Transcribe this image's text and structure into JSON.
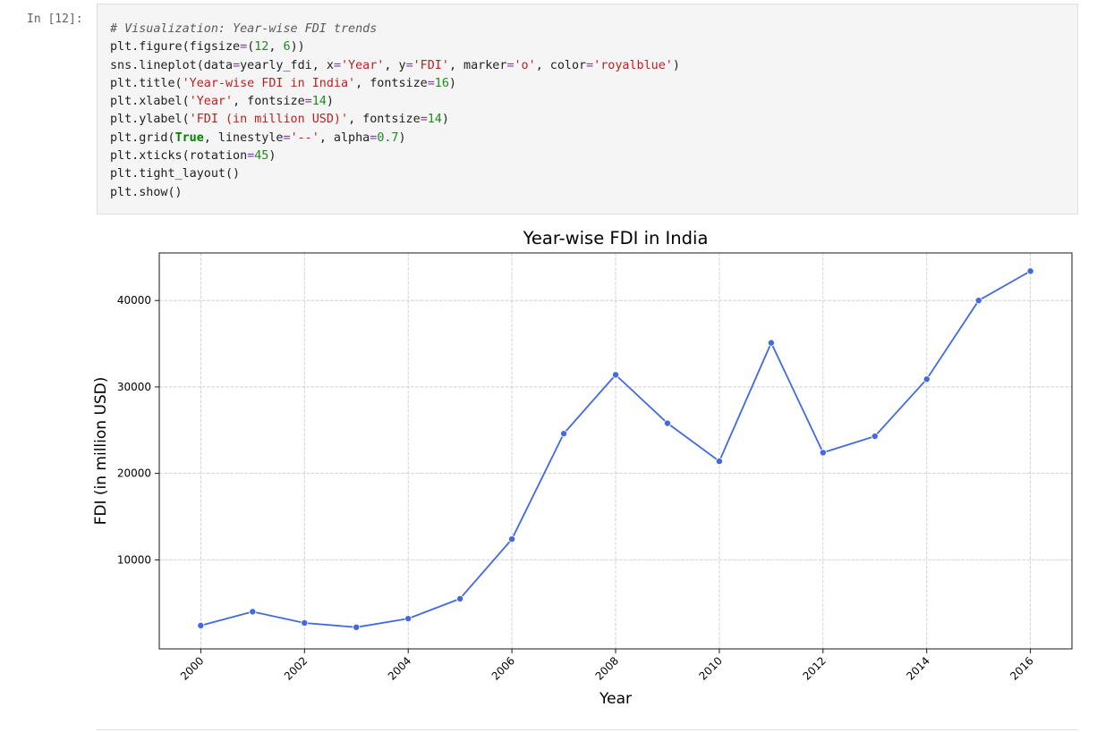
{
  "cell": {
    "prompt": "In [12]:",
    "code_lines": [
      [
        {
          "t": "# Visualization: Year-wise FDI trends",
          "c": "cm"
        }
      ],
      [
        {
          "t": "plt.figure(figsize"
        },
        {
          "t": "=",
          "c": "op"
        },
        {
          "t": "("
        },
        {
          "t": "12",
          "c": "nu"
        },
        {
          "t": ", "
        },
        {
          "t": "6",
          "c": "nu"
        },
        {
          "t": "))"
        }
      ],
      [
        {
          "t": "sns.lineplot(data"
        },
        {
          "t": "=",
          "c": "op"
        },
        {
          "t": "yearly_fdi, x"
        },
        {
          "t": "=",
          "c": "op"
        },
        {
          "t": "'Year'",
          "c": "st"
        },
        {
          "t": ", y"
        },
        {
          "t": "=",
          "c": "op"
        },
        {
          "t": "'FDI'",
          "c": "st"
        },
        {
          "t": ", marker"
        },
        {
          "t": "=",
          "c": "op"
        },
        {
          "t": "'o'",
          "c": "st"
        },
        {
          "t": ", color"
        },
        {
          "t": "=",
          "c": "op"
        },
        {
          "t": "'royalblue'",
          "c": "st"
        },
        {
          "t": ")"
        }
      ],
      [
        {
          "t": "plt.title("
        },
        {
          "t": "'Year-wise FDI in India'",
          "c": "st"
        },
        {
          "t": ", fontsize"
        },
        {
          "t": "=",
          "c": "op"
        },
        {
          "t": "16",
          "c": "nu"
        },
        {
          "t": ")"
        }
      ],
      [
        {
          "t": "plt.xlabel("
        },
        {
          "t": "'Year'",
          "c": "st"
        },
        {
          "t": ", fontsize"
        },
        {
          "t": "=",
          "c": "op"
        },
        {
          "t": "14",
          "c": "nu"
        },
        {
          "t": ")"
        }
      ],
      [
        {
          "t": "plt.ylabel("
        },
        {
          "t": "'FDI (in million USD)'",
          "c": "st"
        },
        {
          "t": ", fontsize"
        },
        {
          "t": "=",
          "c": "op"
        },
        {
          "t": "14",
          "c": "nu"
        },
        {
          "t": ")"
        }
      ],
      [
        {
          "t": "plt.grid("
        },
        {
          "t": "True",
          "c": "kw"
        },
        {
          "t": ", linestyle"
        },
        {
          "t": "=",
          "c": "op"
        },
        {
          "t": "'--'",
          "c": "st"
        },
        {
          "t": ", alpha"
        },
        {
          "t": "=",
          "c": "op"
        },
        {
          "t": "0.7",
          "c": "nu"
        },
        {
          "t": ")"
        }
      ],
      [
        {
          "t": "plt.xticks(rotation"
        },
        {
          "t": "=",
          "c": "op"
        },
        {
          "t": "45",
          "c": "nu"
        },
        {
          "t": ")"
        }
      ],
      [
        {
          "t": "plt.tight_layout()"
        }
      ],
      [
        {
          "t": "plt.show()"
        }
      ]
    ]
  },
  "chart_data": {
    "type": "line",
    "title": "Year-wise FDI in India",
    "xlabel": "Year",
    "ylabel": "FDI (in million USD)",
    "x": [
      2000,
      2001,
      2002,
      2003,
      2004,
      2005,
      2006,
      2007,
      2008,
      2009,
      2010,
      2011,
      2012,
      2013,
      2014,
      2015,
      2016
    ],
    "series": [
      {
        "values": [
          2400,
          4000,
          2700,
          2200,
          3200,
          5500,
          12400,
          24600,
          31400,
          25800,
          21400,
          35100,
          22400,
          24300,
          30900,
          40000,
          43400
        ]
      }
    ],
    "xticks": [
      "2000",
      "2002",
      "2004",
      "2006",
      "2008",
      "2010",
      "2012",
      "2014",
      "2016"
    ],
    "yticks": [
      "10000",
      "20000",
      "30000",
      "40000"
    ],
    "xlim": [
      1999.2,
      2016.8
    ],
    "ylim": [
      -300,
      45500
    ],
    "grid": true,
    "marker": "o",
    "color": "#4169e1"
  }
}
